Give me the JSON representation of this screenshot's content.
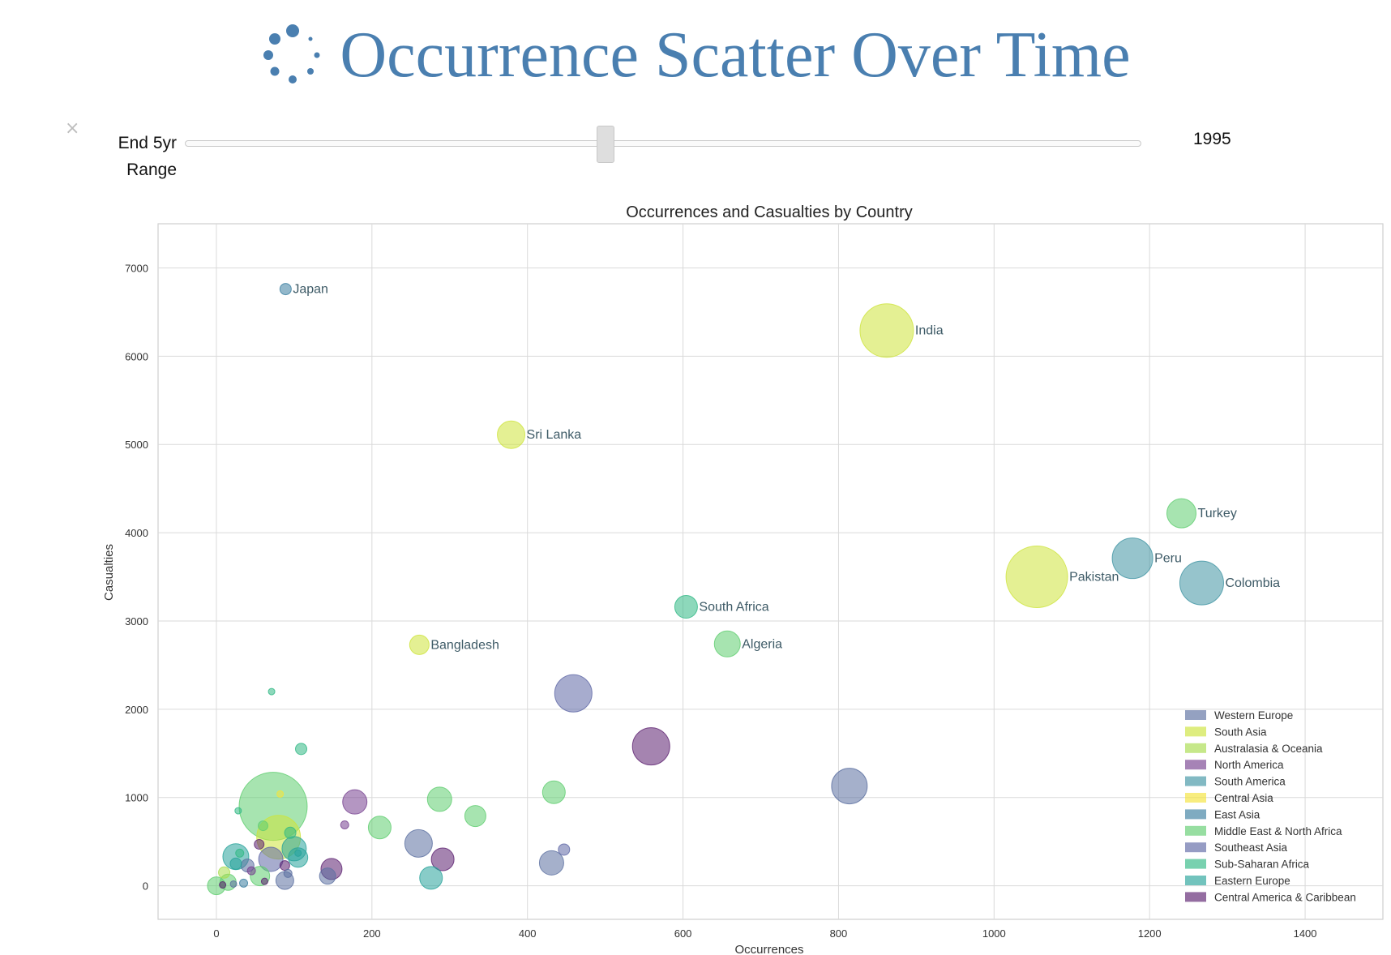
{
  "header": {
    "title": "Occurrence Scatter Over Time",
    "logo_icon": "dots-spinner-icon"
  },
  "controls": {
    "close_icon": "close-icon",
    "close_glyph": "×",
    "slider_label_line1": "End 5yr",
    "slider_label_line2": "Range",
    "slider_value": "1995",
    "slider_fraction": 0.44
  },
  "colors": {
    "title": "#4a7fb0",
    "regions": {
      "Western Europe": "#5b6fa0",
      "South Asia": "#cde33b",
      "Australasia & Oceania": "#a7dc4b",
      "North America": "#76408f",
      "South America": "#3f93a3",
      "Central Asia": "#f5e43a",
      "East Asia": "#3a7ea0",
      "Middle East & North Africa": "#5fcd6f",
      "Southeast Asia": "#5e67a5",
      "Sub-Saharan Africa": "#2fb884",
      "Eastern Europe": "#27a39a",
      "Central America & Caribbean": "#5b1f6f"
    }
  },
  "chart_data": {
    "type": "scatter",
    "title": "Occurrences and Casualties by Country",
    "xlabel": "Occurrences",
    "ylabel": "Casualties",
    "xlim": [
      -75,
      1500
    ],
    "ylim": [
      -380,
      7500
    ],
    "xticks": [
      0,
      200,
      400,
      600,
      800,
      1000,
      1200,
      1400
    ],
    "yticks": [
      0,
      1000,
      2000,
      3000,
      4000,
      5000,
      6000,
      7000
    ],
    "grid": true,
    "legend_position": "lower-right",
    "legend": [
      "Western Europe",
      "South Asia",
      "Australasia & Oceania",
      "North America",
      "South America",
      "Central Asia",
      "East Asia",
      "Middle East & North Africa",
      "Southeast Asia",
      "Sub-Saharan Africa",
      "Eastern Europe",
      "Central America & Caribbean"
    ],
    "points": [
      {
        "label": "Japan",
        "region": "East Asia",
        "x": 89,
        "y": 6760,
        "size": 7
      },
      {
        "label": "India",
        "region": "South Asia",
        "x": 862,
        "y": 6290,
        "size": 33
      },
      {
        "label": "Sri Lanka",
        "region": "South Asia",
        "x": 379,
        "y": 5110,
        "size": 17
      },
      {
        "label": "Turkey",
        "region": "Middle East & North Africa",
        "x": 1241,
        "y": 4220,
        "size": 18
      },
      {
        "label": "Peru",
        "region": "South America",
        "x": 1178,
        "y": 3710,
        "size": 25
      },
      {
        "label": "Pakistan",
        "region": "South Asia",
        "x": 1055,
        "y": 3500,
        "size": 38
      },
      {
        "label": "Colombia",
        "region": "South America",
        "x": 1267,
        "y": 3430,
        "size": 27
      },
      {
        "label": "South Africa",
        "region": "Sub-Saharan Africa",
        "x": 604,
        "y": 3160,
        "size": 14
      },
      {
        "label": "Algeria",
        "region": "Middle East & North Africa",
        "x": 657,
        "y": 2740,
        "size": 16
      },
      {
        "label": "Bangladesh",
        "region": "South Asia",
        "x": 261,
        "y": 2730,
        "size": 12
      },
      {
        "label": "",
        "region": "Southeast Asia",
        "x": 459,
        "y": 2180,
        "size": 23
      },
      {
        "label": "",
        "region": "Central America & Caribbean",
        "x": 559,
        "y": 1580,
        "size": 23
      },
      {
        "label": "",
        "region": "Western Europe",
        "x": 814,
        "y": 1130,
        "size": 22
      },
      {
        "label": "",
        "region": "Middle East & North Africa",
        "x": 73,
        "y": 900,
        "size": 42
      },
      {
        "label": "",
        "region": "South Asia",
        "x": 80,
        "y": 550,
        "size": 27
      },
      {
        "label": "",
        "region": "Middle East & North Africa",
        "x": 434,
        "y": 1060,
        "size": 14
      },
      {
        "label": "",
        "region": "Middle East & North Africa",
        "x": 287,
        "y": 980,
        "size": 15
      },
      {
        "label": "",
        "region": "North America",
        "x": 178,
        "y": 950,
        "size": 15
      },
      {
        "label": "",
        "region": "Middle East & North Africa",
        "x": 333,
        "y": 790,
        "size": 13
      },
      {
        "label": "",
        "region": "Middle East & North Africa",
        "x": 210,
        "y": 660,
        "size": 14
      },
      {
        "label": "",
        "region": "Western Europe",
        "x": 260,
        "y": 480,
        "size": 17
      },
      {
        "label": "",
        "region": "Southeast Asia",
        "x": 447,
        "y": 410,
        "size": 7
      },
      {
        "label": "",
        "region": "Western Europe",
        "x": 431,
        "y": 260,
        "size": 15
      },
      {
        "label": "",
        "region": "Central America & Caribbean",
        "x": 291,
        "y": 300,
        "size": 14
      },
      {
        "label": "",
        "region": "Eastern Europe",
        "x": 276,
        "y": 90,
        "size": 14
      },
      {
        "label": "",
        "region": "Central America & Caribbean",
        "x": 148,
        "y": 190,
        "size": 13
      },
      {
        "label": "",
        "region": "Western Europe",
        "x": 143,
        "y": 110,
        "size": 10
      },
      {
        "label": "",
        "region": "Sub-Saharan Africa",
        "x": 109,
        "y": 1550,
        "size": 7
      },
      {
        "label": "",
        "region": "Sub-Saharan Africa",
        "x": 71,
        "y": 2200,
        "size": 4
      },
      {
        "label": "",
        "region": "Sub-Saharan Africa",
        "x": 28,
        "y": 850,
        "size": 4
      },
      {
        "label": "",
        "region": "North America",
        "x": 165,
        "y": 690,
        "size": 5
      },
      {
        "label": "",
        "region": "Eastern Europe",
        "x": 25,
        "y": 330,
        "size": 16
      },
      {
        "label": "",
        "region": "Eastern Europe",
        "x": 100,
        "y": 420,
        "size": 15
      },
      {
        "label": "",
        "region": "Eastern Europe",
        "x": 105,
        "y": 320,
        "size": 12
      },
      {
        "label": "",
        "region": "Southeast Asia",
        "x": 70,
        "y": 300,
        "size": 15
      },
      {
        "label": "",
        "region": "Middle East & North Africa",
        "x": 56,
        "y": 110,
        "size": 12
      },
      {
        "label": "",
        "region": "Western Europe",
        "x": 88,
        "y": 60,
        "size": 11
      },
      {
        "label": "",
        "region": "Middle East & North Africa",
        "x": 0,
        "y": 0,
        "size": 11
      },
      {
        "label": "",
        "region": "Middle East & North Africa",
        "x": 15,
        "y": 40,
        "size": 10
      },
      {
        "label": "",
        "region": "Australasia & Oceania",
        "x": 10,
        "y": 150,
        "size": 7
      },
      {
        "label": "",
        "region": "Eastern Europe",
        "x": 25,
        "y": 250,
        "size": 7
      },
      {
        "label": "",
        "region": "Western Europe",
        "x": 40,
        "y": 230,
        "size": 8
      },
      {
        "label": "",
        "region": "Central America & Caribbean",
        "x": 55,
        "y": 470,
        "size": 6
      },
      {
        "label": "",
        "region": "Middle East & North Africa",
        "x": 60,
        "y": 680,
        "size": 6
      },
      {
        "label": "",
        "region": "Sub-Saharan Africa",
        "x": 95,
        "y": 600,
        "size": 7
      },
      {
        "label": "",
        "region": "Central America & Caribbean",
        "x": 88,
        "y": 230,
        "size": 6
      },
      {
        "label": "",
        "region": "Western Europe",
        "x": 92,
        "y": 140,
        "size": 5
      },
      {
        "label": "",
        "region": "East Asia",
        "x": 35,
        "y": 30,
        "size": 5
      },
      {
        "label": "",
        "region": "Western Europe",
        "x": 22,
        "y": 20,
        "size": 4
      },
      {
        "label": "",
        "region": "Central America & Caribbean",
        "x": 8,
        "y": 10,
        "size": 4
      },
      {
        "label": "",
        "region": "Central Asia",
        "x": 82,
        "y": 1040,
        "size": 4
      },
      {
        "label": "",
        "region": "Sub-Saharan Africa",
        "x": 30,
        "y": 370,
        "size": 5
      },
      {
        "label": "",
        "region": "North America",
        "x": 45,
        "y": 170,
        "size": 5
      },
      {
        "label": "",
        "region": "Central America & Caribbean",
        "x": 62,
        "y": 50,
        "size": 4
      },
      {
        "label": "",
        "region": "Eastern Europe",
        "x": 105,
        "y": 370,
        "size": 4
      }
    ]
  }
}
